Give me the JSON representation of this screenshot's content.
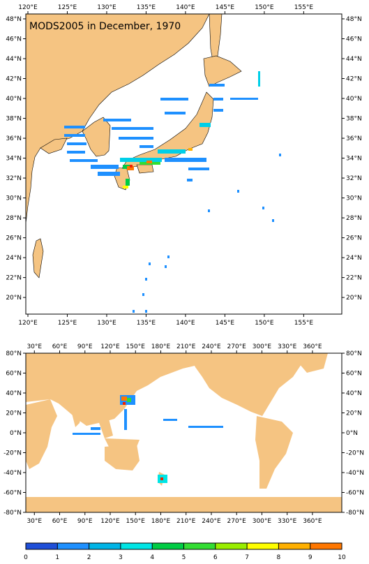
{
  "top_map": {
    "title": "MODS2005 in December, 1970",
    "lon_ticks": [
      "120°E",
      "125°E",
      "130°E",
      "135°E",
      "140°E",
      "145°E",
      "150°E",
      "155°E"
    ],
    "lat_ticks": [
      "48°N",
      "46°N",
      "44°N",
      "42°N",
      "40°N",
      "38°N",
      "36°N",
      "34°N",
      "32°N",
      "30°N",
      "28°N",
      "26°N",
      "24°N",
      "22°N",
      "20°N"
    ]
  },
  "bottom_map": {
    "lon_ticks": [
      "30°E",
      "60°E",
      "90°E",
      "120°E",
      "150°E",
      "180°E",
      "210°E",
      "240°E",
      "270°E",
      "300°E",
      "330°E",
      "360°E"
    ],
    "lat_ticks": [
      "80°N",
      "60°N",
      "40°N",
      "20°N",
      "0°N",
      "-20°N",
      "-40°N",
      "-60°N",
      "-80°N"
    ]
  },
  "colorbar": {
    "labels": [
      "0",
      "1",
      "2",
      "3",
      "4",
      "5",
      "6",
      "7",
      "8",
      "9",
      "10"
    ],
    "colors": [
      "#1f4fd8",
      "#1e90ff",
      "#00b4e6",
      "#00e5e5",
      "#00cc44",
      "#33dd33",
      "#99ee00",
      "#ffff00",
      "#ffb000",
      "#ff7700",
      "#ee2200"
    ]
  },
  "colors": {
    "land": "#f5c482",
    "ocean": "#ffffff"
  }
}
